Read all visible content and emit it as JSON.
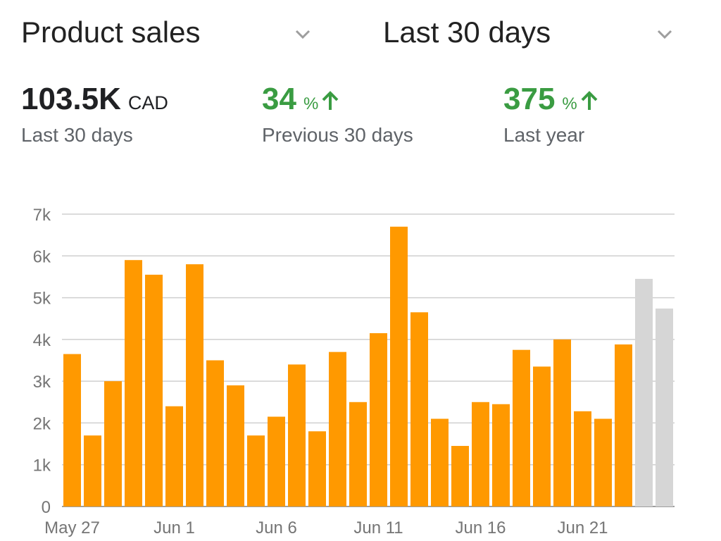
{
  "header": {
    "metric_select": "Product sales",
    "period_select": "Last 30 days"
  },
  "kpis": [
    {
      "value": "103.5K",
      "unit": "CAD",
      "label": "Last 30 days"
    },
    {
      "value": "34",
      "unit": "%",
      "label": "Previous 30 days",
      "trend": "up"
    },
    {
      "value": "375",
      "unit": "%",
      "label": "Last year",
      "trend": "up"
    }
  ],
  "colors": {
    "bar": "#FF9900",
    "bar_partial": "#D6D6D6",
    "positive": "#3A9C42",
    "grid": "#CFCFCF"
  },
  "chart_data": {
    "type": "bar",
    "title": "",
    "xlabel": "",
    "ylabel": "",
    "ylim": [
      0,
      7000
    ],
    "yticks": [
      0,
      1000,
      2000,
      3000,
      4000,
      5000,
      6000,
      7000
    ],
    "ytick_labels": [
      "0",
      "1k",
      "2k",
      "3k",
      "4k",
      "5k",
      "6k",
      "7k"
    ],
    "xtick_labels": [
      {
        "index": 0,
        "label": "May 27"
      },
      {
        "index": 5,
        "label": "Jun 1"
      },
      {
        "index": 10,
        "label": "Jun 6"
      },
      {
        "index": 15,
        "label": "Jun 11"
      },
      {
        "index": 20,
        "label": "Jun 16"
      },
      {
        "index": 25,
        "label": "Jun 21"
      }
    ],
    "grid": true,
    "categories": [
      "May 27",
      "May 28",
      "May 29",
      "May 30",
      "May 31",
      "Jun 1",
      "Jun 2",
      "Jun 3",
      "Jun 4",
      "Jun 5",
      "Jun 6",
      "Jun 7",
      "Jun 8",
      "Jun 9",
      "Jun 10",
      "Jun 11",
      "Jun 12",
      "Jun 13",
      "Jun 14",
      "Jun 15",
      "Jun 16",
      "Jun 17",
      "Jun 18",
      "Jun 19",
      "Jun 20",
      "Jun 21",
      "Jun 22",
      "Jun 23",
      "Jun 24",
      "Jun 25"
    ],
    "values": [
      3650,
      1700,
      3000,
      5900,
      5550,
      2400,
      5800,
      3500,
      2900,
      1700,
      2150,
      3400,
      1800,
      3700,
      2500,
      4150,
      6700,
      4650,
      2100,
      1450,
      2500,
      2450,
      3750,
      3350,
      4000,
      2280,
      2100,
      3880,
      5450,
      4740
    ],
    "partial_from_index": 28
  }
}
